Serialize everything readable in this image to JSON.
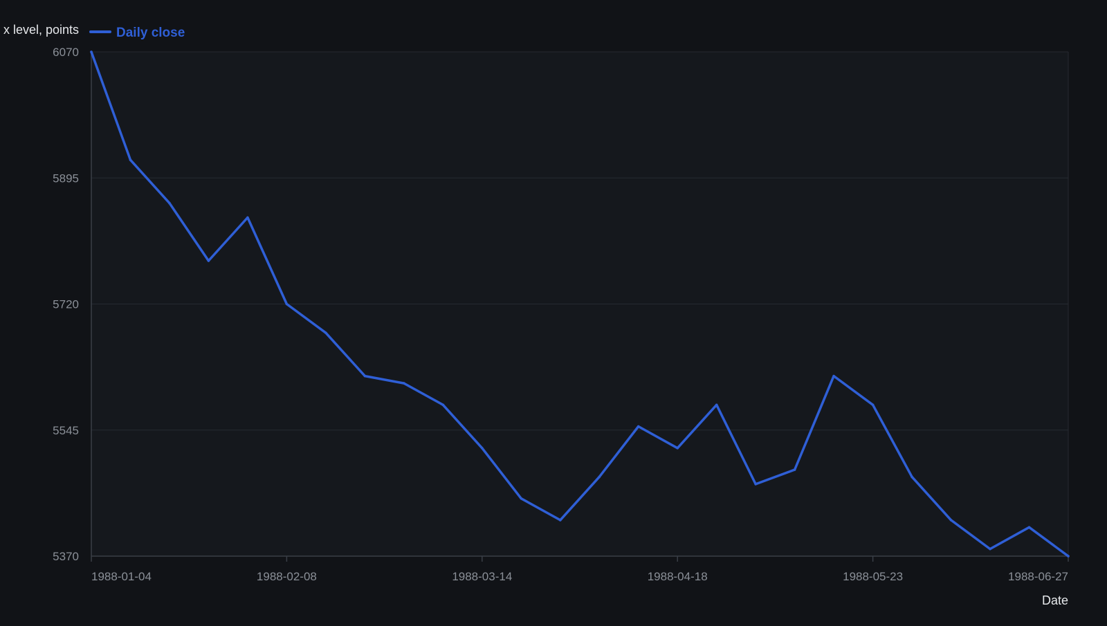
{
  "colors": {
    "background": "#111317",
    "plot_background": "#15181d",
    "series": "#2f5fd6",
    "grid": "#262a31",
    "axis": "#3a3f47",
    "tick_text": "#8b9098",
    "label_text": "#e6e8eb"
  },
  "chart_data": {
    "type": "line",
    "title": "",
    "xlabel": "Date",
    "ylabel": "x level, points",
    "ylim": [
      5370,
      6070
    ],
    "yticks": [
      5370,
      5545,
      5720,
      5895,
      6070
    ],
    "xticks": [
      "1988-01-04",
      "1988-02-08",
      "1988-03-14",
      "1988-04-18",
      "1988-05-23",
      "1988-06-27"
    ],
    "legend": "top-left",
    "grid": true,
    "x": [
      "1988-01-04",
      "1988-01-11",
      "1988-01-18",
      "1988-01-25",
      "1988-02-01",
      "1988-02-08",
      "1988-02-15",
      "1988-02-22",
      "1988-02-29",
      "1988-03-07",
      "1988-03-14",
      "1988-03-21",
      "1988-03-28",
      "1988-04-04",
      "1988-04-11",
      "1988-04-18",
      "1988-04-25",
      "1988-05-02",
      "1988-05-09",
      "1988-05-16",
      "1988-05-23",
      "1988-05-30",
      "1988-06-06",
      "1988-06-13",
      "1988-06-20",
      "1988-06-27"
    ],
    "series": [
      {
        "name": "Daily close",
        "values": [
          6070,
          5920,
          5860,
          5780,
          5840,
          5720,
          5680,
          5620,
          5610,
          5580,
          5520,
          5450,
          5420,
          5480,
          5550,
          5520,
          5580,
          5470,
          5490,
          5620,
          5580,
          5480,
          5420,
          5380,
          5410,
          5370
        ]
      }
    ]
  }
}
